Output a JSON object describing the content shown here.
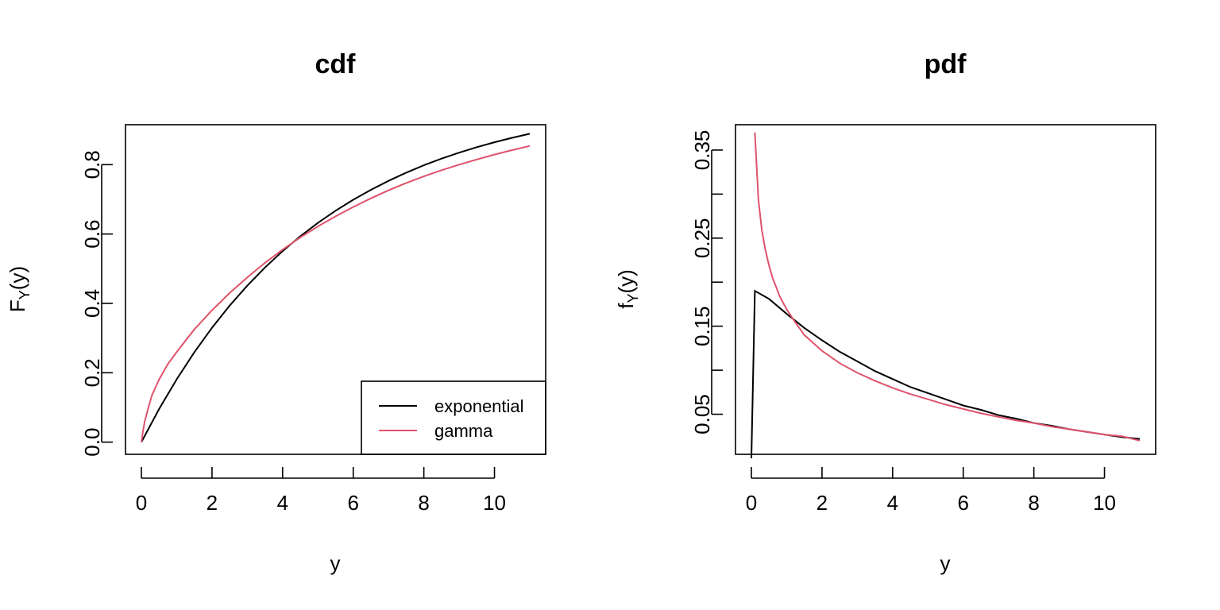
{
  "colors": {
    "exponential": "#000000",
    "gamma": "#DF536B"
  },
  "chart_data": [
    {
      "type": "line",
      "title": "cdf",
      "xlabel": "y",
      "ylabel_main": "F",
      "ylabel_sub": "Y",
      "ylabel_tail": "(y)",
      "xlim": [
        -0.45,
        11.45
      ],
      "ylim": [
        -0.0352,
        0.9152
      ],
      "xticks": [
        0,
        2,
        4,
        6,
        8,
        10
      ],
      "yticks": [
        0.0,
        0.2,
        0.4,
        0.6,
        0.8
      ],
      "ytick_labels": [
        "0.0",
        "0.2",
        "0.4",
        "0.6",
        "0.8"
      ],
      "legend": {
        "position": "bottom-right",
        "entries": [
          "exponential",
          "gamma"
        ]
      },
      "series": [
        {
          "name": "exponential",
          "color": "#000000",
          "x": [
            0,
            0.5,
            1,
            1.5,
            2,
            2.5,
            3,
            3.5,
            4,
            4.5,
            5,
            5.5,
            6,
            6.5,
            7,
            7.5,
            8,
            8.5,
            9,
            9.5,
            10,
            10.5,
            11
          ],
          "y": [
            0.0,
            0.0952,
            0.1813,
            0.2592,
            0.3297,
            0.3935,
            0.4512,
            0.5034,
            0.5507,
            0.5934,
            0.6321,
            0.6671,
            0.6988,
            0.7275,
            0.7534,
            0.7769,
            0.7981,
            0.8173,
            0.8347,
            0.8504,
            0.8647,
            0.8775,
            0.8892
          ]
        },
        {
          "name": "gamma",
          "color": "#DF536B",
          "x": [
            0,
            0.05,
            0.1,
            0.2,
            0.3,
            0.5,
            0.75,
            1,
            1.5,
            2,
            2.5,
            3,
            3.5,
            4,
            4.5,
            5,
            5.5,
            6,
            6.5,
            7,
            7.5,
            8,
            8.5,
            9,
            9.5,
            10,
            10.5,
            11
          ],
          "y": [
            0.0,
            0.034,
            0.0615,
            0.1,
            0.135,
            0.18,
            0.225,
            0.26,
            0.325,
            0.38,
            0.43,
            0.475,
            0.517,
            0.555,
            0.59,
            0.622,
            0.651,
            0.678,
            0.703,
            0.726,
            0.747,
            0.766,
            0.784,
            0.8,
            0.815,
            0.829,
            0.842,
            0.854
          ]
        }
      ]
    },
    {
      "type": "line",
      "title": "pdf",
      "xlabel": "y",
      "ylabel_main": "f",
      "ylabel_sub": "Y",
      "ylabel_tail": "(y)",
      "xlim": [
        -0.45,
        11.45
      ],
      "ylim": [
        0.0045,
        0.3788
      ],
      "xticks": [
        0,
        2,
        4,
        6,
        8,
        10
      ],
      "yticks": [
        0.05,
        0.1,
        0.15,
        0.2,
        0.25,
        0.3,
        0.35
      ],
      "ytick_labels": [
        "0.05",
        "",
        "0.15",
        "",
        "0.25",
        "",
        "0.35"
      ],
      "series": [
        {
          "name": "exponential",
          "color": "#000000",
          "x": [
            0,
            0.1,
            0.5,
            1,
            1.5,
            2,
            2.5,
            3,
            3.5,
            4,
            4.5,
            5,
            5.5,
            6,
            6.5,
            7,
            7.5,
            8,
            8.5,
            9,
            9.5,
            10,
            10.5,
            11
          ],
          "y": [
            0.0,
            0.19,
            0.181,
            0.164,
            0.148,
            0.134,
            0.121,
            0.11,
            0.099,
            0.09,
            0.081,
            0.074,
            0.067,
            0.06,
            0.055,
            0.049,
            0.045,
            0.04,
            0.037,
            0.033,
            0.03,
            0.027,
            0.024,
            0.022
          ]
        },
        {
          "name": "gamma",
          "color": "#DF536B",
          "x": [
            0.1,
            0.2,
            0.3,
            0.4,
            0.5,
            0.6,
            0.8,
            1,
            1.2,
            1.5,
            2,
            2.5,
            3,
            3.5,
            4,
            4.5,
            5,
            5.5,
            6,
            6.5,
            7,
            7.5,
            8,
            8.5,
            9,
            9.5,
            10,
            10.5,
            11
          ],
          "y": [
            0.37,
            0.293,
            0.258,
            0.236,
            0.219,
            0.205,
            0.184,
            0.169,
            0.157,
            0.14,
            0.122,
            0.108,
            0.097,
            0.088,
            0.08,
            0.073,
            0.067,
            0.061,
            0.056,
            0.051,
            0.047,
            0.043,
            0.04,
            0.036,
            0.033,
            0.03,
            0.027,
            0.025,
            0.02
          ]
        }
      ]
    }
  ]
}
